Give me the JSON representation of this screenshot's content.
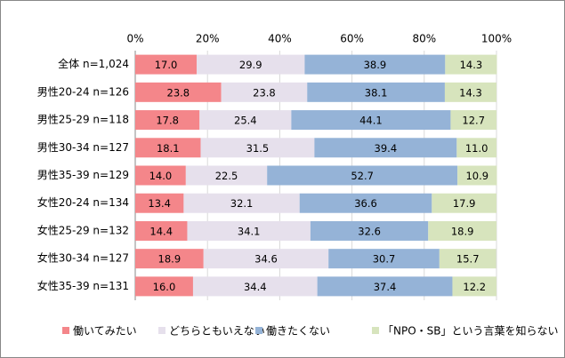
{
  "chart_data": {
    "type": "stacked-bar-horizontal",
    "categories": [
      "全体 n=1,024",
      "男性20-24 n=126",
      "男性25-29 n=118",
      "男性30-34 n=127",
      "男性35-39 n=129",
      "女性20-24 n=134",
      "女性25-29 n=132",
      "女性30-34 n=127",
      "女性35-39 n=131"
    ],
    "series": [
      {
        "name": "働いてみたい",
        "color": "#f4868a",
        "values": [
          17.0,
          23.8,
          17.8,
          18.1,
          14.0,
          13.4,
          14.4,
          18.9,
          16.0
        ],
        "value_labels": [
          "17.0",
          "23.8",
          "17.8",
          "18.1",
          "14.0",
          "13.4",
          "14.4",
          "18.9",
          "16.0"
        ]
      },
      {
        "name": "どちらともいえない",
        "color": "#e6e0ec",
        "values": [
          29.9,
          23.8,
          25.4,
          31.5,
          22.5,
          32.1,
          34.1,
          34.6,
          34.4
        ],
        "value_labels": [
          "29.9",
          "23.8",
          "25.4",
          "31.5",
          "22.5",
          "32.1",
          "34.1",
          "34.6",
          "34.4"
        ]
      },
      {
        "name": "働きたくない",
        "color": "#95b3d7",
        "values": [
          38.9,
          38.1,
          44.1,
          39.4,
          52.7,
          36.6,
          32.6,
          30.7,
          37.4
        ],
        "value_labels": [
          "38.9",
          "38.1",
          "44.1",
          "39.4",
          "52.7",
          "36.6",
          "32.6",
          "30.7",
          "37.4"
        ]
      },
      {
        "name": "「NPO・SB」という言葉を知らない",
        "color": "#d7e4bd",
        "values": [
          14.3,
          14.3,
          12.7,
          11.0,
          10.9,
          17.9,
          18.9,
          15.7,
          12.2
        ],
        "value_labels": [
          "14.3",
          "14.3",
          "12.7",
          "11.0",
          "10.9",
          "17.9",
          "18.9",
          "15.7",
          "12.2"
        ]
      }
    ],
    "xlim": [
      0,
      100
    ],
    "xticks": [
      {
        "value": 0,
        "label": "0%"
      },
      {
        "value": 20,
        "label": "20%"
      },
      {
        "value": 40,
        "label": "40%"
      },
      {
        "value": 60,
        "label": "60%"
      },
      {
        "value": 80,
        "label": "80%"
      },
      {
        "value": 100,
        "label": "100%"
      }
    ],
    "grid": true,
    "legend": "bottom"
  }
}
